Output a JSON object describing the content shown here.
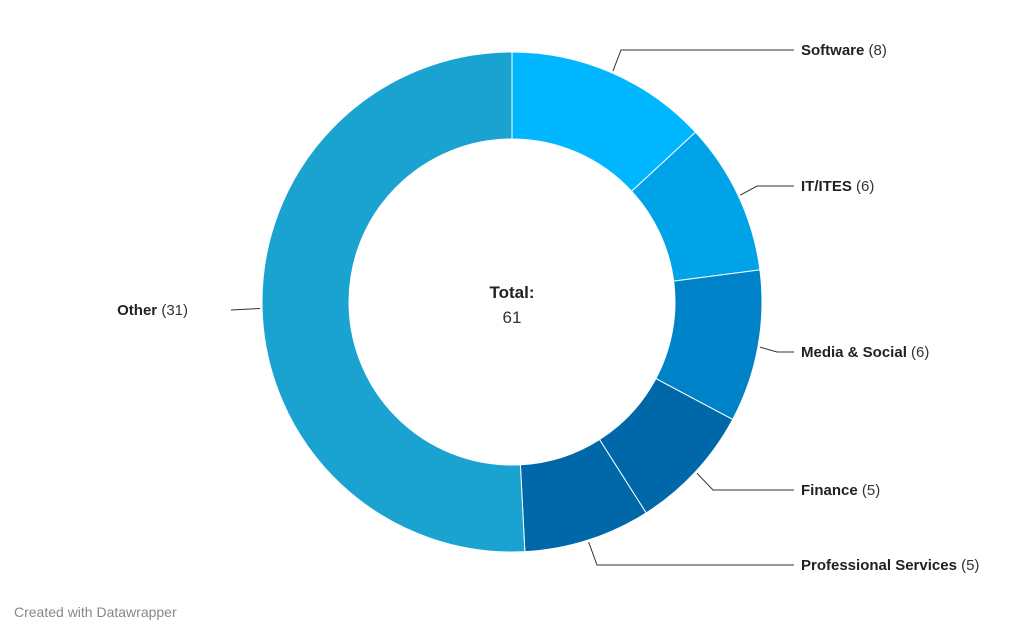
{
  "chart_data": {
    "type": "pie",
    "variant": "donut",
    "title": "",
    "center": {
      "title": "Total:",
      "value": "61"
    },
    "slices": [
      {
        "name": "Software",
        "count": "(8)",
        "value": 8,
        "color": "#00b7ff"
      },
      {
        "name": "IT/ITES",
        "count": "(6)",
        "value": 6,
        "color": "#00a2e8"
      },
      {
        "name": "Media & Social",
        "count": "(6)",
        "value": 6,
        "color": "#0082c8"
      },
      {
        "name": "Finance",
        "count": "(5)",
        "value": 5,
        "color": "#0068a8"
      },
      {
        "name": "Professional Services",
        "count": "(5)",
        "value": 5,
        "color": "#0068a8"
      },
      {
        "name": "Other",
        "count": "(31)",
        "value": 31,
        "color": "#1aa2d0"
      }
    ]
  },
  "footer": {
    "credit": "Created with Datawrapper"
  }
}
